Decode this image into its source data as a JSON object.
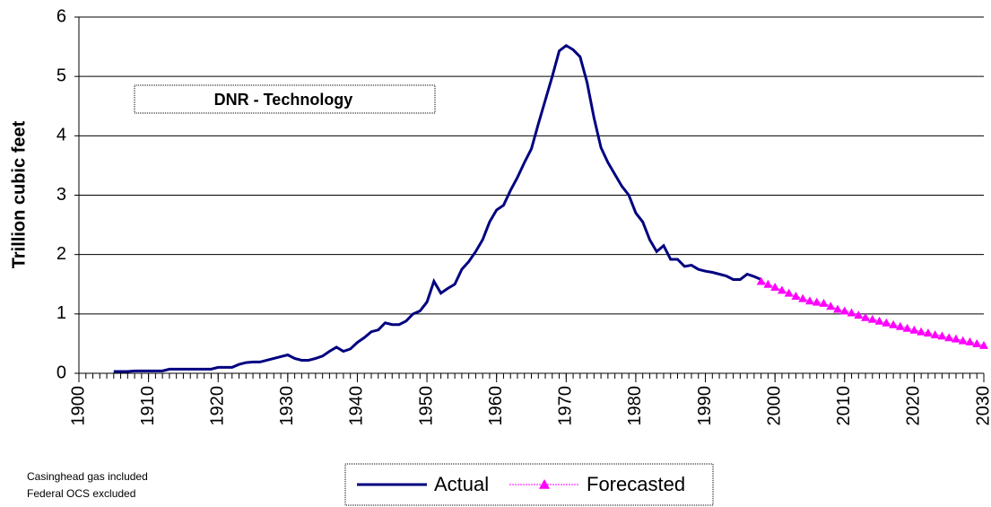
{
  "chart_data": {
    "type": "line",
    "y_label": "Trillion cubic feet",
    "annotation": "DNR - Technology",
    "notes": [
      "Casinghead gas included",
      "Federal OCS excluded"
    ],
    "x": [
      1905,
      1906,
      1907,
      1908,
      1909,
      1910,
      1911,
      1912,
      1913,
      1914,
      1915,
      1916,
      1917,
      1918,
      1919,
      1920,
      1921,
      1922,
      1923,
      1924,
      1925,
      1926,
      1927,
      1928,
      1929,
      1930,
      1931,
      1932,
      1933,
      1934,
      1935,
      1936,
      1937,
      1938,
      1939,
      1940,
      1941,
      1942,
      1943,
      1944,
      1945,
      1946,
      1947,
      1948,
      1949,
      1950,
      1951,
      1952,
      1953,
      1954,
      1955,
      1956,
      1957,
      1958,
      1959,
      1960,
      1961,
      1962,
      1963,
      1964,
      1965,
      1966,
      1967,
      1968,
      1969,
      1970,
      1971,
      1972,
      1973,
      1974,
      1975,
      1976,
      1977,
      1978,
      1979,
      1980,
      1981,
      1982,
      1983,
      1984,
      1985,
      1986,
      1987,
      1988,
      1989,
      1990,
      1991,
      1992,
      1993,
      1994,
      1995,
      1996,
      1997,
      1998,
      1999,
      2000,
      2001,
      2002,
      2003,
      2004,
      2005,
      2006,
      2007,
      2008,
      2009,
      2010,
      2011,
      2012,
      2013,
      2014,
      2015,
      2016,
      2017,
      2018,
      2019,
      2020,
      2021,
      2022,
      2023,
      2024,
      2025,
      2026,
      2027,
      2028,
      2029,
      2030
    ],
    "series": [
      {
        "name": "Actual",
        "color": "#000080",
        "marker": "none",
        "values": [
          0.03,
          0.03,
          0.03,
          0.04,
          0.04,
          0.04,
          0.04,
          0.04,
          0.07,
          0.07,
          0.07,
          0.07,
          0.07,
          0.07,
          0.07,
          0.1,
          0.1,
          0.1,
          0.15,
          0.18,
          0.19,
          0.19,
          0.22,
          0.25,
          0.28,
          0.31,
          0.25,
          0.22,
          0.22,
          0.25,
          0.29,
          0.37,
          0.44,
          0.37,
          0.41,
          0.52,
          0.6,
          0.7,
          0.73,
          0.85,
          0.82,
          0.82,
          0.88,
          1.0,
          1.05,
          1.2,
          1.55,
          1.35,
          1.43,
          1.5,
          1.75,
          1.88,
          2.05,
          2.25,
          2.55,
          2.75,
          2.83,
          3.08,
          3.3,
          3.55,
          3.78,
          4.2,
          4.6,
          5.0,
          5.43,
          5.52,
          5.45,
          5.33,
          4.9,
          4.3,
          3.8,
          3.55,
          3.35,
          3.15,
          3.0,
          2.7,
          2.55,
          2.25,
          2.05,
          2.15,
          1.92,
          1.92,
          1.8,
          1.82,
          1.75,
          1.72,
          1.7,
          1.67,
          1.64,
          1.58,
          1.58,
          1.67,
          1.63,
          1.58,
          null,
          null,
          null,
          null,
          null,
          null,
          null,
          null,
          null,
          null,
          null,
          null,
          null,
          null,
          null,
          null,
          null,
          null,
          null,
          null,
          null,
          null,
          null,
          null,
          null,
          null,
          null,
          null,
          null,
          null,
          null,
          null
        ]
      },
      {
        "name": "Forecasted",
        "color": "#ff00ff",
        "marker": "triangle",
        "values": [
          null,
          null,
          null,
          null,
          null,
          null,
          null,
          null,
          null,
          null,
          null,
          null,
          null,
          null,
          null,
          null,
          null,
          null,
          null,
          null,
          null,
          null,
          null,
          null,
          null,
          null,
          null,
          null,
          null,
          null,
          null,
          null,
          null,
          null,
          null,
          null,
          null,
          null,
          null,
          null,
          null,
          null,
          null,
          null,
          null,
          null,
          null,
          null,
          null,
          null,
          null,
          null,
          null,
          null,
          null,
          null,
          null,
          null,
          null,
          null,
          null,
          null,
          null,
          null,
          null,
          null,
          null,
          null,
          null,
          null,
          null,
          null,
          null,
          null,
          null,
          null,
          null,
          null,
          null,
          null,
          null,
          null,
          null,
          null,
          null,
          null,
          null,
          null,
          null,
          null,
          null,
          null,
          null,
          1.55,
          1.5,
          1.45,
          1.4,
          1.35,
          1.3,
          1.26,
          1.22,
          1.2,
          1.18,
          1.13,
          1.08,
          1.05,
          1.02,
          0.98,
          0.94,
          0.91,
          0.88,
          0.85,
          0.82,
          0.79,
          0.76,
          0.73,
          0.7,
          0.68,
          0.65,
          0.63,
          0.6,
          0.58,
          0.55,
          0.53,
          0.5,
          0.47
        ]
      }
    ],
    "xlim": [
      1900,
      2030
    ],
    "xticks": [
      1900,
      1910,
      1920,
      1930,
      1940,
      1950,
      1960,
      1970,
      1980,
      1990,
      2000,
      2010,
      2020,
      2030
    ],
    "xminor_step": 1,
    "ylim": [
      0,
      6
    ],
    "yticks": [
      0,
      1,
      2,
      3,
      4,
      5,
      6
    ],
    "grid": true
  }
}
